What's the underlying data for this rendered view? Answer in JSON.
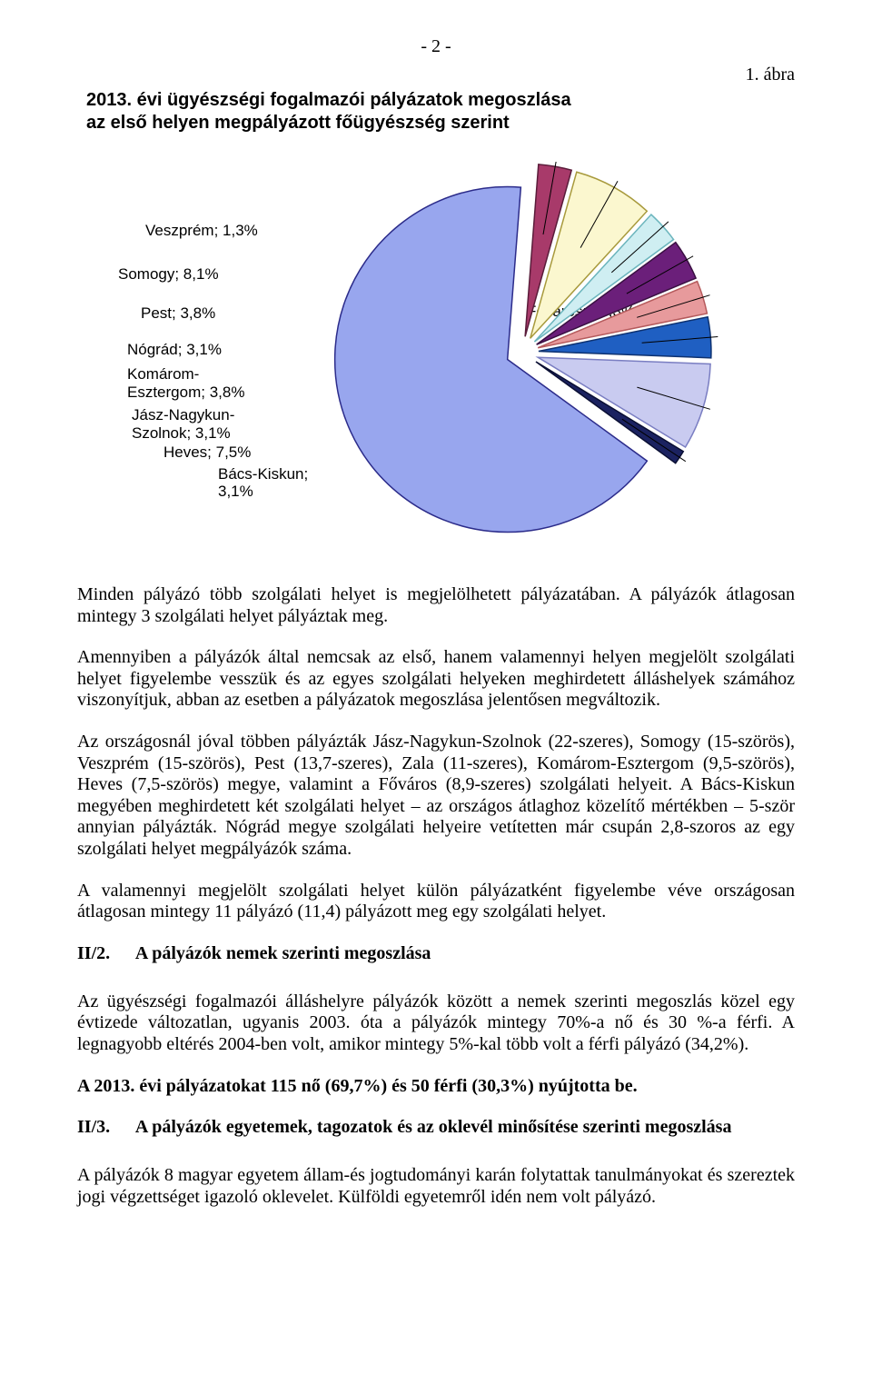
{
  "page_number": "- 2 -",
  "figure_label": "1.   ábra",
  "chart": {
    "type": "pie",
    "title_line1": "2013. évi ügyészségi fogalmazói pályázatok megoszlása",
    "title_line2": "az első helyen megpályázott főügyészség szerint",
    "center_label": "Főváros; 66,3%",
    "left_labels": {
      "veszprem": "Veszprém; 1,3%",
      "somogy": "Somogy; 8,1%",
      "pest": "Pest; 3,8%",
      "nograd": "Nógrád; 3,1%",
      "komarom1": "Komárom-",
      "komarom2": "Esztergom; 3,8%",
      "jnsz1": "Jász-Nagykun-",
      "jnsz2": "Szolnok; 3,1%",
      "heves": "Heves; 7,5%",
      "bacs": "Bács-Kiskun; 3,1%"
    },
    "slices": [
      {
        "label": "Főváros",
        "value": 66.3,
        "color": "#98a6ee",
        "stroke": "#2b2b8a"
      },
      {
        "label": "Bács-Kiskun",
        "value": 3.1,
        "color": "#a83a6a",
        "stroke": "#5a1c3a"
      },
      {
        "label": "Heves",
        "value": 7.5,
        "color": "#fbf7cf",
        "stroke": "#a89a3c"
      },
      {
        "label": "Jász-Nagykun-Szolnok",
        "value": 3.1,
        "color": "#cfeef2",
        "stroke": "#6bb5bd"
      },
      {
        "label": "Komárom-Esztergom",
        "value": 3.8,
        "color": "#6b1f7a",
        "stroke": "#3a1042"
      },
      {
        "label": "Nógrád",
        "value": 3.1,
        "color": "#e79a9c",
        "stroke": "#b55a5c"
      },
      {
        "label": "Pest",
        "value": 3.8,
        "color": "#1f5fc2",
        "stroke": "#0e3270"
      },
      {
        "label": "Somogy",
        "value": 8.1,
        "color": "#c9cbf0",
        "stroke": "#7a7ec2"
      },
      {
        "label": "Veszprém",
        "value": 1.3,
        "color": "#1b2260",
        "stroke": "#0a0f33"
      }
    ],
    "radius": 190,
    "explode": 18,
    "start_angle_deg": 36,
    "background": "#ffffff"
  },
  "paragraphs": {
    "p1": "Minden pályázó több szolgálati helyet is megjelölhetett pályázatában. A pályázók átlagosan mintegy 3 szolgálati helyet pályáztak meg.",
    "p2": "Amennyiben a pályázók által nemcsak az első, hanem valamennyi helyen megjelölt szolgálati helyet figyelembe vesszük és az egyes szolgálati helyeken meghirdetett álláshelyek számához viszonyítjuk, abban az esetben a pályázatok megoszlása jelentősen megváltozik.",
    "p3": "Az országosnál jóval többen pályázták Jász-Nagykun-Szolnok (22-szeres), Somogy (15-szörös), Veszprém (15-szörös), Pest (13,7-szeres), Zala (11-szeres), Komárom-Esztergom (9,5-szörös), Heves (7,5-szörös) megye, valamint a Főváros (8,9-szeres) szolgálati helyeit. A Bács-Kiskun megyében meghirdetett két szolgálati helyet – az országos átlaghoz közelítő mértékben – 5-ször annyian pályázták. Nógrád megye szolgálati helyeire vetítetten már csupán 2,8-szoros az egy szolgálati helyet megpályázók száma.",
    "p4": "A valamennyi megjelölt szolgálati helyet külön pályázatként figyelembe véve országosan átlagosan mintegy 11 pályázó (11,4) pályázott meg egy szolgálati helyet.",
    "p5": "Az ügyészségi fogalmazói álláshelyre pályázók között a nemek szerinti megoszlás közel egy évtizede változatlan, ugyanis 2003. óta a pályázók mintegy 70%-a nő és 30 %-a férfi. A legnagyobb eltérés 2004-ben volt, amikor mintegy 5%-kal több volt a férfi pályázó (34,2%).",
    "p6": "A 2013. évi pályázatokat 115 nő (69,7%) és 50 férfi (30,3%) nyújtotta be.",
    "p7": "A pályázók 8 magyar egyetem állam-és jogtudományi karán folytattak tanulmányokat és szereztek jogi végzettséget igazoló oklevelet. Külföldi egyetemről idén nem volt pályázó."
  },
  "headings": {
    "h2a_num": "II/2.",
    "h2a_txt": "A pályázók nemek szerinti megoszlása",
    "h2b_num": "II/3.",
    "h2b_txt": "A pályázók egyetemek, tagozatok és az oklevél minősítése szerinti megoszlása"
  }
}
